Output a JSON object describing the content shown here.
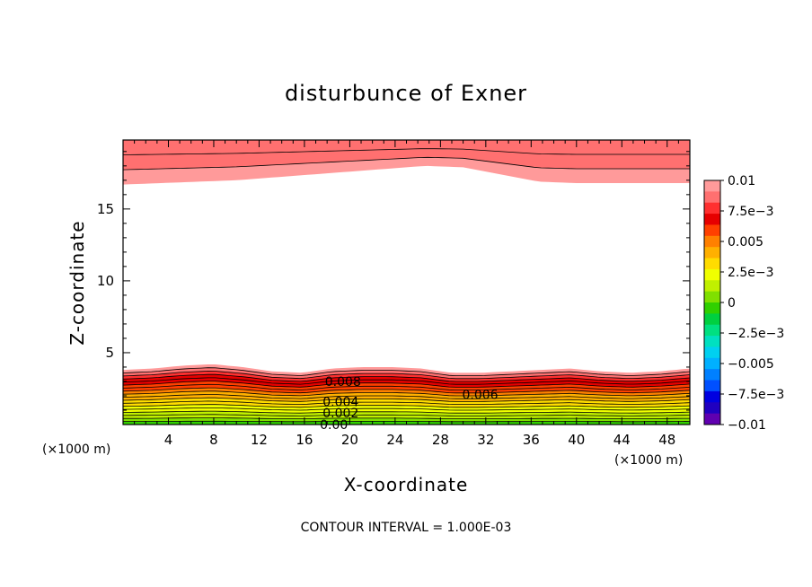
{
  "chart_data": {
    "type": "contour",
    "title": "disturbunce of Exner",
    "xlabel": "X-coordinate",
    "ylabel": "Z-coordinate",
    "x_unit_left": "(×1000 m)",
    "x_unit_right": "(×1000 m)",
    "xlim": [
      0,
      50
    ],
    "ylim": [
      0,
      19.8
    ],
    "x_ticks": [
      4,
      8,
      12,
      16,
      20,
      24,
      28,
      32,
      36,
      40,
      44,
      48
    ],
    "x_tick_labels": [
      "4",
      "8",
      "12",
      "16",
      "20",
      "24",
      "28",
      "32",
      "36",
      "40",
      "44",
      "48"
    ],
    "y_ticks": [
      5,
      10,
      15
    ],
    "y_tick_labels": [
      "5",
      "10",
      "15"
    ],
    "contour_interval_text": "CONTOUR INTERVAL = 1.000E-03",
    "colorbar": {
      "tick_labels": [
        "0.01",
        "7.5e-3",
        "0.005",
        "2.5e-3",
        "0",
        "-2.5e-3",
        "-0.005",
        "-7.5e-3",
        "-0.01"
      ],
      "colors": [
        "#ff9a9a",
        "#ff7070",
        "#ff3030",
        "#e60000",
        "#ff4000",
        "#ff8000",
        "#ffb000",
        "#ffdc00",
        "#f0ff00",
        "#c0f000",
        "#80e000",
        "#30d000",
        "#00d040",
        "#00e080",
        "#00e0c0",
        "#00d0f0",
        "#00b0ff",
        "#0080ff",
        "#0050ff",
        "#0000e0",
        "#2000c0",
        "#6000b0"
      ]
    },
    "contour_labels": [
      {
        "text": "0.008",
        "x": 19.4,
        "z": 3.0
      },
      {
        "text": "0.006",
        "x": 31.5,
        "z": 2.1
      },
      {
        "text": "0.004",
        "x": 19.2,
        "z": 1.6
      },
      {
        "text": "0.002",
        "x": 19.2,
        "z": 0.8
      },
      {
        "text": "0.00",
        "x": 18.6,
        "z": 0.0
      }
    ],
    "bottom_layer_top_z": [
      3.8,
      3.9,
      4.1,
      4.2,
      4.0,
      3.7,
      3.6,
      3.9,
      4.0,
      4.0,
      3.9,
      3.6,
      3.6,
      3.7,
      3.8,
      3.9,
      3.7,
      3.6,
      3.7,
      3.9
    ],
    "top_layer_bottom_z": [
      16.7,
      16.8,
      16.9,
      17.0,
      17.2,
      17.4,
      17.6,
      17.8,
      18.0,
      17.9,
      17.4,
      16.9,
      16.8,
      16.8,
      16.8,
      16.8
    ],
    "bottom_band_values": [
      0.0095,
      0.0085,
      0.0075,
      0.007,
      0.0065,
      0.006,
      0.0055,
      0.005,
      0.0045,
      0.004,
      0.0035,
      0.003,
      0.0025,
      0.002,
      0.0015,
      0.001,
      0.0005,
      0.0
    ],
    "top_band_values": [
      0.0095,
      0.0088,
      0.0082
    ]
  }
}
